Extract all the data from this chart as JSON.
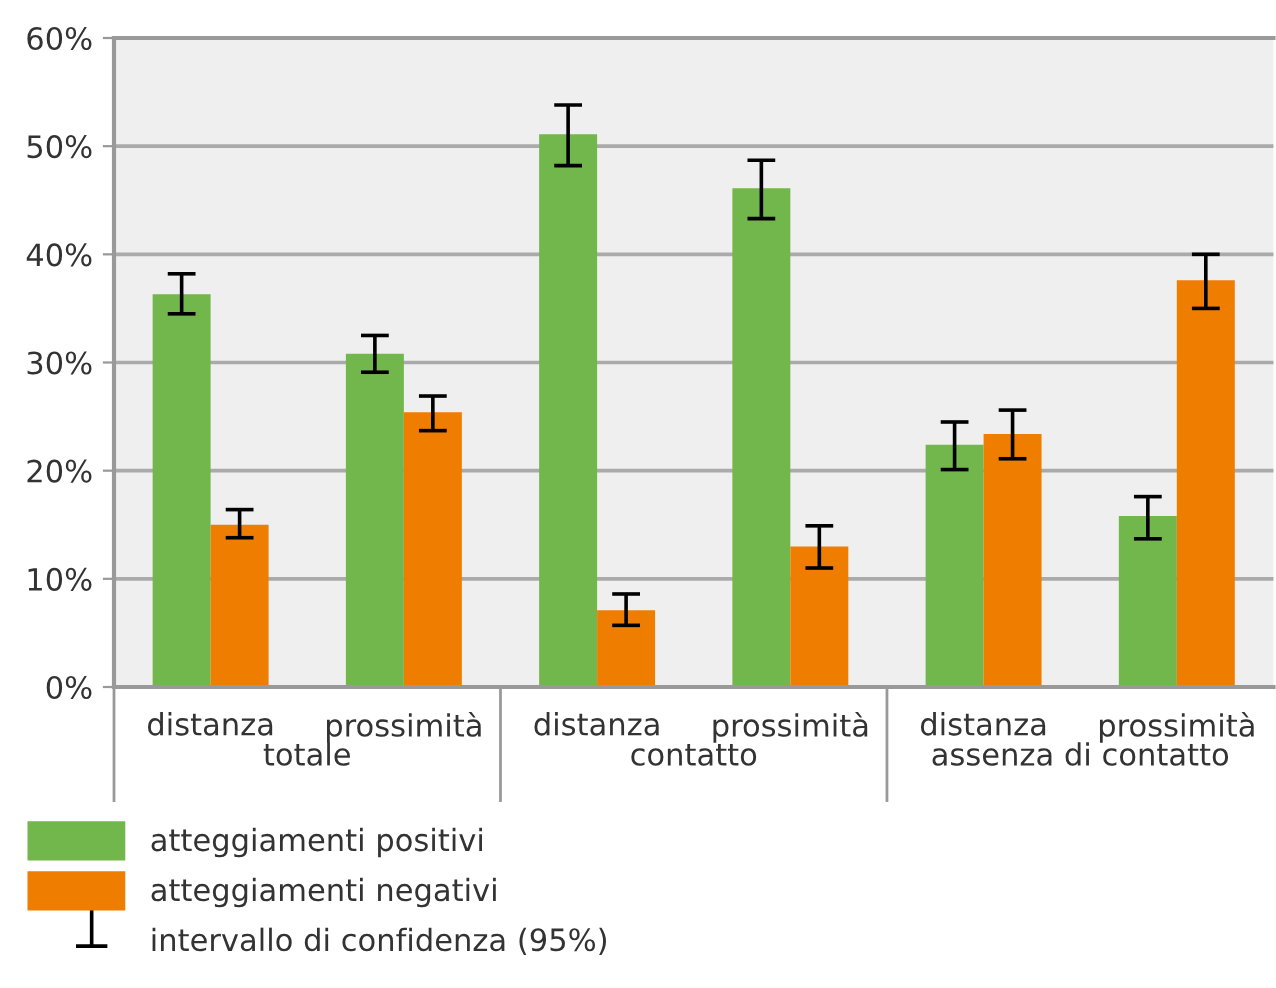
{
  "chart_data": {
    "type": "bar",
    "categories": [
      "distanza",
      "prossimità",
      "distanza",
      "prossimità",
      "distanza",
      "prossimità"
    ],
    "series": [
      {
        "name": "atteggiamenti positivi",
        "color": "#72b74b",
        "values": [
          36.3,
          30.8,
          51.1,
          46.1,
          22.4,
          15.8
        ],
        "errors": [
          [
            34.5,
            38.2
          ],
          [
            29.1,
            32.5
          ],
          [
            48.2,
            53.8
          ],
          [
            43.3,
            48.7
          ],
          [
            20.1,
            24.5
          ],
          [
            13.7,
            17.6
          ]
        ]
      },
      {
        "name": "atteggiamenti negativi",
        "color": "#ef7d00",
        "values": [
          15.0,
          25.4,
          7.1,
          13.0,
          23.4,
          37.6
        ],
        "errors": [
          [
            13.8,
            16.4
          ],
          [
            23.7,
            26.9
          ],
          [
            5.7,
            8.6
          ],
          [
            11.0,
            14.9
          ],
          [
            21.1,
            25.6
          ],
          [
            35.0,
            40.0
          ]
        ]
      }
    ],
    "annotations": [
      "totale",
      "contatto",
      "assenza di contatto",
      "intervallo di confidenza (95%)"
    ],
    "ylim": [
      0,
      60
    ],
    "yticks": [
      {
        "value": 0,
        "label": "0%"
      },
      {
        "value": 10,
        "label": "10%"
      },
      {
        "value": 20,
        "label": "20%"
      },
      {
        "value": 30,
        "label": "30%"
      },
      {
        "value": 40,
        "label": "40%"
      },
      {
        "value": 50,
        "label": "50%"
      },
      {
        "value": 60,
        "label": "60%"
      }
    ],
    "grid": "y",
    "legend": "bottom left"
  }
}
